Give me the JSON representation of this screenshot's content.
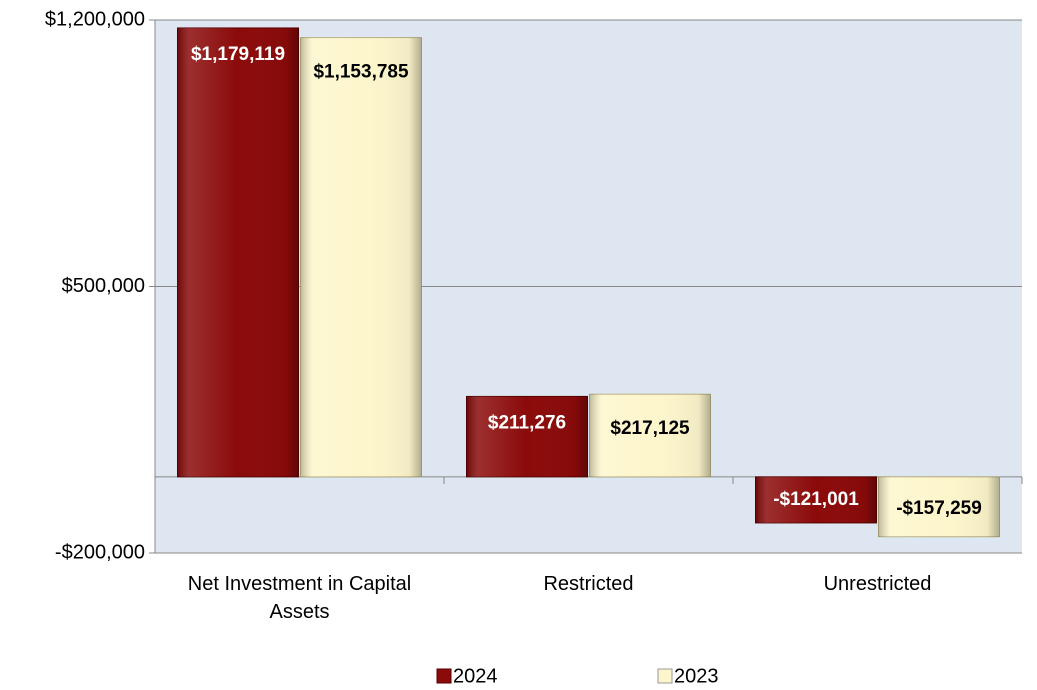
{
  "chart_data": {
    "type": "bar",
    "categories": [
      "Net Investment in Capital Assets",
      "Restricted",
      "Unrestricted"
    ],
    "series": [
      {
        "name": "2024",
        "color": "#8b0a0a",
        "values": [
          1179119,
          211276,
          -121001
        ],
        "value_labels": [
          "$1,179,119",
          "$211,276",
          "-$121,001"
        ]
      },
      {
        "name": "2023",
        "color": "#fdf6cc",
        "values": [
          1153785,
          217125,
          -157259
        ],
        "value_labels": [
          "$1,153,785",
          "$217,125",
          "-$157,259"
        ]
      }
    ],
    "ylim": [
      -200000,
      1200000
    ],
    "yticks": [
      {
        "value": -200000,
        "label": "-$200,000"
      },
      {
        "value": 500000,
        "label": "$500,000"
      },
      {
        "value": 1200000,
        "label": "$1,200,000"
      }
    ],
    "grid": true,
    "legend": "bottom"
  }
}
